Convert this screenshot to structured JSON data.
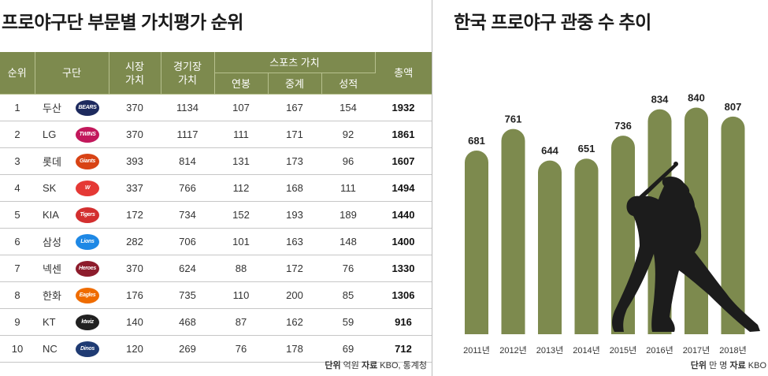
{
  "table": {
    "title": "프로야구단 부문별 가치평가 순위",
    "headers": {
      "rank": "순위",
      "team": "구단",
      "market": [
        "시장",
        "가치"
      ],
      "stadium": [
        "경기장",
        "가치"
      ],
      "sports": "스포츠 가치",
      "salary": "연봉",
      "broadcast": "중계",
      "performance": "성적",
      "total": "총액"
    },
    "rows": [
      {
        "rank": "1",
        "team": "두산",
        "logo": "BEARS",
        "color": "#1d2a5e",
        "market": "370",
        "stadium": "1134",
        "salary": "107",
        "broadcast": "167",
        "performance": "154",
        "total": "1932"
      },
      {
        "rank": "2",
        "team": "LG",
        "logo": "TWINS",
        "color": "#c2185b",
        "market": "370",
        "stadium": "1117",
        "salary": "111",
        "broadcast": "171",
        "performance": "92",
        "total": "1861"
      },
      {
        "rank": "3",
        "team": "롯데",
        "logo": "Giants",
        "color": "#d84315",
        "market": "393",
        "stadium": "814",
        "salary": "131",
        "broadcast": "173",
        "performance": "96",
        "total": "1607"
      },
      {
        "rank": "4",
        "team": "SK",
        "logo": "W",
        "color": "#e53935",
        "market": "337",
        "stadium": "766",
        "salary": "112",
        "broadcast": "168",
        "performance": "111",
        "total": "1494"
      },
      {
        "rank": "5",
        "team": "KIA",
        "logo": "Tigers",
        "color": "#d32f2f",
        "market": "172",
        "stadium": "734",
        "salary": "152",
        "broadcast": "193",
        "performance": "189",
        "total": "1440"
      },
      {
        "rank": "6",
        "team": "삼성",
        "logo": "Lions",
        "color": "#1e88e5",
        "market": "282",
        "stadium": "706",
        "salary": "101",
        "broadcast": "163",
        "performance": "148",
        "total": "1400"
      },
      {
        "rank": "7",
        "team": "넥센",
        "logo": "Heroes",
        "color": "#8d1c2c",
        "market": "370",
        "stadium": "624",
        "salary": "88",
        "broadcast": "172",
        "performance": "76",
        "total": "1330"
      },
      {
        "rank": "8",
        "team": "한화",
        "logo": "Eagles",
        "color": "#ef6c00",
        "market": "176",
        "stadium": "735",
        "salary": "110",
        "broadcast": "200",
        "performance": "85",
        "total": "1306"
      },
      {
        "rank": "9",
        "team": "KT",
        "logo": "ktwiz",
        "color": "#212121",
        "market": "140",
        "stadium": "468",
        "salary": "87",
        "broadcast": "162",
        "performance": "59",
        "total": "916"
      },
      {
        "rank": "10",
        "team": "NC",
        "logo": "Dinos",
        "color": "#1f3b73",
        "market": "120",
        "stadium": "269",
        "salary": "76",
        "broadcast": "178",
        "performance": "69",
        "total": "712"
      }
    ],
    "source_unit_label": "단위",
    "source_unit": "억원",
    "source_label": "자료",
    "source": "KBO, 통계청"
  },
  "chart_data": {
    "type": "bar",
    "title": "한국 프로야구 관중 수 추이",
    "categories": [
      "2011년",
      "2012년",
      "2013년",
      "2014년",
      "2015년",
      "2016년",
      "2017년",
      "2018년"
    ],
    "values": [
      681,
      761,
      644,
      651,
      736,
      834,
      840,
      807
    ],
    "value_labels": [
      "681",
      "761",
      "644",
      "651",
      "736",
      "834",
      "840",
      "807"
    ],
    "ylim": [
      0,
      900
    ],
    "bar_color": "#7d8a4e",
    "grid": false,
    "source_unit_label": "단위",
    "source_unit": "만 명",
    "source_label": "자료",
    "source": "KBO"
  },
  "colors": {
    "header_bg": "#7d8a4e",
    "silhouette": "#1c1c1c"
  }
}
